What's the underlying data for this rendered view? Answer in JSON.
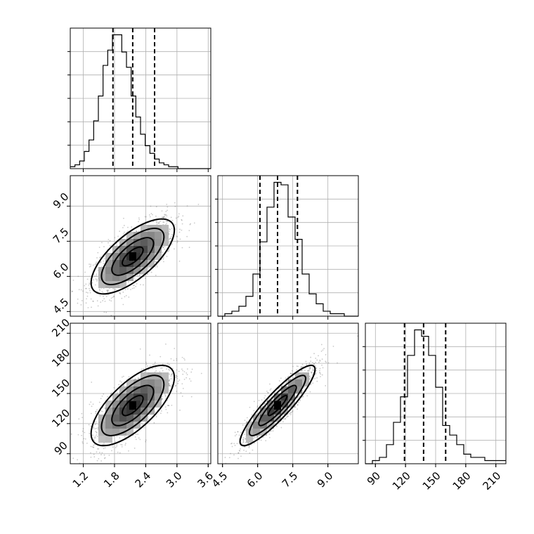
{
  "chart_data": {
    "type": "corner",
    "grid": true,
    "colors": {
      "line": "#000000",
      "grid": "#b0b0b0",
      "points": "#6b6b6b"
    },
    "parameters": [
      {
        "range": [
          0.95,
          3.65
        ],
        "ticks": [
          1.2,
          1.8,
          2.4,
          3.0,
          3.6
        ],
        "tick_labels": [
          "1.2",
          "1.8",
          "2.4",
          "3.0",
          "3.6"
        ],
        "quantiles": [
          1.77,
          2.15,
          2.57
        ],
        "hist_start": 0.95,
        "hist_bin_width": 0.09,
        "hist_counts": [
          1,
          2,
          4,
          9,
          15,
          25,
          38,
          54,
          62,
          70,
          70,
          61,
          53,
          38,
          27,
          18,
          12,
          8,
          5,
          3,
          2,
          1,
          1,
          0,
          0,
          0,
          0,
          0,
          0,
          0
        ]
      },
      {
        "range": [
          4.3,
          10.3
        ],
        "ticks": [
          4.5,
          6.0,
          7.5,
          9.0
        ],
        "tick_labels": [
          "4.5",
          "6.0",
          "7.5",
          "9.0"
        ],
        "quantiles": [
          6.1,
          6.85,
          7.7
        ],
        "hist_start": 4.3,
        "hist_bin_width": 0.3,
        "hist_counts": [
          0,
          1,
          2,
          4,
          8,
          17,
          30,
          44,
          54,
          53,
          40,
          31,
          17,
          9,
          5,
          2,
          1,
          1,
          0,
          0
        ]
      },
      {
        "range": [
          80,
          220
        ],
        "ticks": [
          90,
          120,
          150,
          180,
          210
        ],
        "tick_labels": [
          "90",
          "120",
          "150",
          "180",
          "210"
        ],
        "quantiles": [
          119,
          138,
          160
        ],
        "hist_start": 80,
        "hist_bin_width": 7,
        "hist_counts": [
          0,
          1,
          2,
          6,
          13,
          21,
          34,
          42,
          40,
          34,
          24,
          12,
          9,
          6,
          3,
          2,
          2,
          1,
          1,
          1
        ]
      }
    ],
    "pairs": [
      {
        "x_param": 0,
        "y_param": 1,
        "center": [
          2.15,
          6.85
        ],
        "sd": [
          0.4,
          0.8
        ],
        "corr": 0.7
      },
      {
        "x_param": 0,
        "y_param": 2,
        "center": [
          2.15,
          138
        ],
        "sd": [
          0.4,
          20
        ],
        "corr": 0.7
      },
      {
        "x_param": 1,
        "y_param": 2,
        "center": [
          6.85,
          138
        ],
        "sd": [
          0.8,
          20
        ],
        "corr": 0.9
      }
    ]
  }
}
